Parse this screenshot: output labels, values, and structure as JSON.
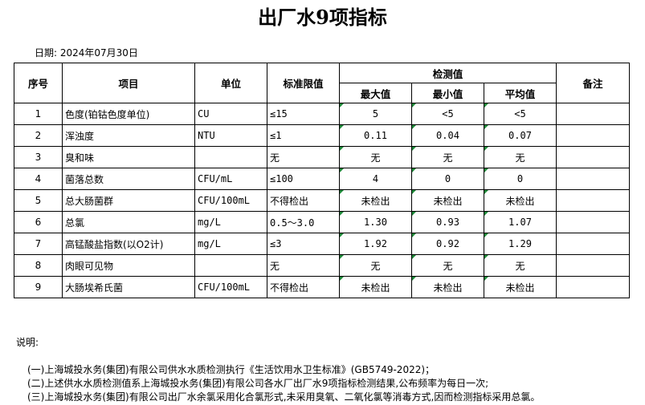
{
  "title": "出厂水9项指标",
  "date": "日期: 2024年07月30日",
  "headers": {
    "no": "序号",
    "item": "项目",
    "unit": "单位",
    "limit": "标准限值",
    "measured": "检测值",
    "max": "最大值",
    "min": "最小值",
    "avg": "平均值",
    "remark": "备注"
  },
  "rows": [
    {
      "no": "1",
      "item": "色度(铂钴色度单位)",
      "unit": "CU",
      "limit": "≤15",
      "max": "5",
      "min": "<5",
      "avg": "<5",
      "remark": ""
    },
    {
      "no": "2",
      "item": "浑浊度",
      "unit": "NTU",
      "limit": "≤1",
      "max": "0.11",
      "min": "0.04",
      "avg": "0.07",
      "remark": ""
    },
    {
      "no": "3",
      "item": "臭和味",
      "unit": "",
      "limit": "无",
      "max": "无",
      "min": "无",
      "avg": "无",
      "remark": ""
    },
    {
      "no": "4",
      "item": "菌落总数",
      "unit": "CFU/mL",
      "limit": "≤100",
      "max": "4",
      "min": "0",
      "avg": "0",
      "remark": ""
    },
    {
      "no": "5",
      "item": "总大肠菌群",
      "unit": "CFU/100mL",
      "limit": "不得检出",
      "max": "未检出",
      "min": "未检出",
      "avg": "未检出",
      "remark": ""
    },
    {
      "no": "6",
      "item": "总氯",
      "unit": "mg/L",
      "limit": "0.5～3.0",
      "max": "1.30",
      "min": "0.93",
      "avg": "1.07",
      "remark": ""
    },
    {
      "no": "7",
      "item": "高锰酸盐指数(以O2计)",
      "unit": "mg/L",
      "limit": "≤3",
      "max": "1.92",
      "min": "0.92",
      "avg": "1.29",
      "remark": ""
    },
    {
      "no": "8",
      "item": "肉眼可见物",
      "unit": "",
      "limit": "无",
      "max": "无",
      "min": "无",
      "avg": "无",
      "remark": ""
    },
    {
      "no": "9",
      "item": "大肠埃希氏菌",
      "unit": "CFU/100mL",
      "limit": "不得检出",
      "max": "未检出",
      "min": "未检出",
      "avg": "未检出",
      "remark": ""
    }
  ],
  "notes": {
    "label": "说明:",
    "lines": [
      "(一)上海城投水务(集团)有限公司供水水质检测执行《生活饮用水卫生标准》(GB5749-2022)；",
      "(二)上述供水水质检测值系上海城投水务(集团)有限公司各水厂出厂水9项指标检测结果,公布频率为每日一次;",
      "(三)上海城投水务(集团)有限公司出厂水余氯采用化合氯形式,未采用臭氧、二氧化氯等消毒方式,因而检测指标采用总氯。"
    ]
  },
  "colors": {
    "marker": "#1f8a3a"
  }
}
